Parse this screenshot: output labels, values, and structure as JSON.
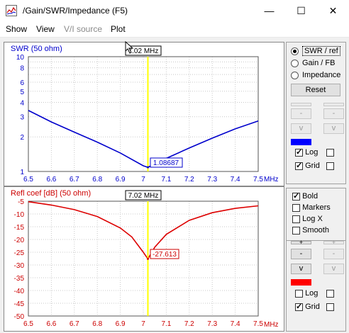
{
  "window": {
    "title": "/Gain/SWR/Impedance (F5)",
    "minimize_glyph": "—",
    "maximize_glyph": "☐",
    "close_glyph": "✕",
    "app_icon": "chart-icon"
  },
  "menu": {
    "items": [
      {
        "label": "Show",
        "enabled": true
      },
      {
        "label": "View",
        "enabled": true
      },
      {
        "label": "V/I source",
        "enabled": false
      },
      {
        "label": "Plot",
        "enabled": true
      }
    ]
  },
  "top_plot": {
    "title": "SWR (50 ohm)",
    "marker_freq_label": "7.02 MHz",
    "marker_value_label": "1.08687",
    "x_unit": "MHz",
    "x_ticks": [
      "6.5",
      "6.6",
      "6.7",
      "6.8",
      "6.9",
      "7",
      "7.1",
      "7.2",
      "7.3",
      "7.4",
      "7.5"
    ],
    "y_ticks": [
      "10",
      "8",
      "6",
      "5",
      "4",
      "3",
      "2",
      "1"
    ],
    "colors": {
      "curve": "#0000cc",
      "marker": "#ffff00",
      "axis_text": "#0000cc"
    }
  },
  "bottom_plot": {
    "title": "Refl coef [dB] (50 ohm)",
    "marker_freq_label": "7.02 MHz",
    "marker_value_label": "-27.613",
    "x_unit": "MHz",
    "x_ticks": [
      "6.5",
      "6.6",
      "6.7",
      "6.8",
      "6.9",
      "7",
      "7.1",
      "7.2",
      "7.3",
      "7.4",
      "7.5"
    ],
    "y_ticks": [
      "-5",
      "-10",
      "-15",
      "-20",
      "-25",
      "-30",
      "-35",
      "-40",
      "-45",
      "-50"
    ],
    "colors": {
      "curve": "#dd0000",
      "marker": "#ffff00",
      "axis_text": "#cc0000"
    }
  },
  "top_panel": {
    "options": [
      {
        "label": "SWR / ref",
        "selected": true
      },
      {
        "label": "Gain / FB",
        "selected": false
      },
      {
        "label": "Impedance",
        "selected": false
      }
    ],
    "reset_label": "Reset",
    "minus_label": "-",
    "v_label": "v",
    "log_label": "Log",
    "log_checked": true,
    "log2_checked": false,
    "grid_label": "Grid",
    "grid_checked": true,
    "grid2_checked": false,
    "swatch_color": "#0000ff"
  },
  "bottom_panel": {
    "bold_label": "Bold",
    "bold_checked": true,
    "markers_label": "Markers",
    "markers_checked": false,
    "logx_label": "Log X",
    "logx_checked": false,
    "smooth_label": "Smooth",
    "smooth_checked": false,
    "plus_label": "+",
    "minus_label": "-",
    "v_label": "v",
    "log_label": "Log",
    "log_checked": false,
    "log2_checked": false,
    "grid_label": "Grid",
    "grid_checked": true,
    "grid2_checked": false,
    "swatch_color": "#ff0000"
  },
  "chart_data": [
    {
      "type": "line",
      "title": "SWR (50 ohm)",
      "xlabel": "MHz",
      "ylabel": "",
      "x_range": [
        6.5,
        7.5
      ],
      "ylim": [
        1,
        10
      ],
      "y_scale": "log",
      "grid": true,
      "x": [
        6.5,
        6.6,
        6.7,
        6.8,
        6.9,
        7.0,
        7.02,
        7.1,
        7.2,
        7.3,
        7.4,
        7.5
      ],
      "series": [
        {
          "values": [
            3.4,
            2.7,
            2.2,
            1.8,
            1.45,
            1.12,
            1.08687,
            1.3,
            1.6,
            1.95,
            2.35,
            2.75
          ]
        }
      ],
      "marker": {
        "x": 7.02,
        "value": 1.08687
      }
    },
    {
      "type": "line",
      "title": "Refl coef [dB] (50 ohm)",
      "xlabel": "MHz",
      "ylabel": "",
      "x_range": [
        6.5,
        7.5
      ],
      "ylim": [
        -50,
        -5
      ],
      "grid": true,
      "x": [
        6.5,
        6.6,
        6.7,
        6.8,
        6.9,
        6.95,
        7.0,
        7.02,
        7.05,
        7.1,
        7.2,
        7.3,
        7.4,
        7.5
      ],
      "series": [
        {
          "values": [
            -5.2,
            -6.5,
            -8.3,
            -11.0,
            -15.5,
            -19.0,
            -25.0,
            -27.613,
            -23.0,
            -18.0,
            -12.5,
            -9.5,
            -7.8,
            -6.8
          ]
        }
      ],
      "marker": {
        "x": 7.02,
        "value": -27.613
      }
    }
  ]
}
